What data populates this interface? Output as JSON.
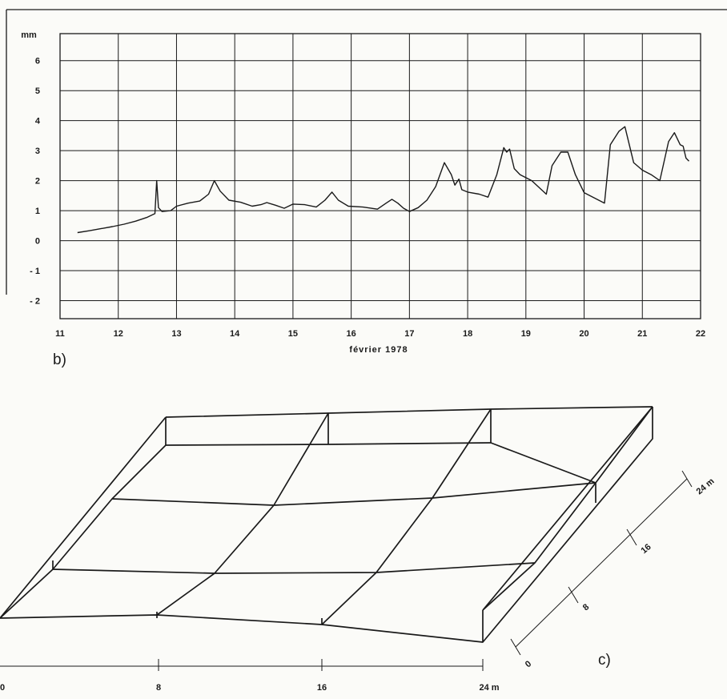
{
  "chart_data": [
    {
      "type": "line",
      "panel_label": "b)",
      "xlabel": "février 1978",
      "ylabel": "mm",
      "xlim": [
        11,
        22
      ],
      "ylim": [
        -2.6,
        6.9
      ],
      "x_ticks": [
        "11",
        "12",
        "13",
        "14",
        "15",
        "16",
        "17",
        "18",
        "19",
        "20",
        "21",
        "22"
      ],
      "y_ticks": [
        "6",
        "5",
        "4",
        "3",
        "2",
        "1",
        "0",
        "- 1",
        "- 2"
      ],
      "grid": true,
      "series": [
        {
          "points": [
            [
              11.3,
              0.27
            ],
            [
              11.5,
              0.33
            ],
            [
              11.7,
              0.4
            ],
            [
              11.9,
              0.47
            ],
            [
              12.1,
              0.55
            ],
            [
              12.3,
              0.65
            ],
            [
              12.5,
              0.78
            ],
            [
              12.63,
              0.9
            ],
            [
              12.66,
              2.0
            ],
            [
              12.69,
              1.1
            ],
            [
              12.75,
              0.97
            ],
            [
              12.9,
              1.0
            ],
            [
              13.0,
              1.15
            ],
            [
              13.2,
              1.25
            ],
            [
              13.4,
              1.32
            ],
            [
              13.55,
              1.55
            ],
            [
              13.65,
              2.0
            ],
            [
              13.75,
              1.65
            ],
            [
              13.9,
              1.35
            ],
            [
              14.1,
              1.28
            ],
            [
              14.3,
              1.15
            ],
            [
              14.45,
              1.2
            ],
            [
              14.55,
              1.27
            ],
            [
              14.7,
              1.18
            ],
            [
              14.85,
              1.08
            ],
            [
              15.0,
              1.22
            ],
            [
              15.2,
              1.2
            ],
            [
              15.4,
              1.12
            ],
            [
              15.55,
              1.35
            ],
            [
              15.67,
              1.62
            ],
            [
              15.78,
              1.35
            ],
            [
              15.95,
              1.15
            ],
            [
              16.2,
              1.12
            ],
            [
              16.45,
              1.05
            ],
            [
              16.6,
              1.25
            ],
            [
              16.7,
              1.38
            ],
            [
              16.8,
              1.25
            ],
            [
              16.9,
              1.08
            ],
            [
              17.0,
              0.97
            ],
            [
              17.15,
              1.1
            ],
            [
              17.3,
              1.35
            ],
            [
              17.45,
              1.8
            ],
            [
              17.6,
              2.6
            ],
            [
              17.72,
              2.2
            ],
            [
              17.78,
              1.85
            ],
            [
              17.85,
              2.05
            ],
            [
              17.9,
              1.7
            ],
            [
              18.0,
              1.62
            ],
            [
              18.2,
              1.55
            ],
            [
              18.35,
              1.45
            ],
            [
              18.5,
              2.2
            ],
            [
              18.62,
              3.1
            ],
            [
              18.67,
              2.95
            ],
            [
              18.72,
              3.05
            ],
            [
              18.8,
              2.4
            ],
            [
              18.9,
              2.2
            ],
            [
              19.1,
              2.0
            ],
            [
              19.35,
              1.55
            ],
            [
              19.45,
              2.5
            ],
            [
              19.6,
              2.95
            ],
            [
              19.72,
              2.95
            ],
            [
              19.85,
              2.2
            ],
            [
              20.0,
              1.6
            ],
            [
              20.2,
              1.4
            ],
            [
              20.35,
              1.25
            ],
            [
              20.45,
              3.2
            ],
            [
              20.6,
              3.65
            ],
            [
              20.7,
              3.8
            ],
            [
              20.85,
              2.6
            ],
            [
              21.0,
              2.35
            ],
            [
              21.15,
              2.2
            ],
            [
              21.3,
              2.0
            ],
            [
              21.45,
              3.3
            ],
            [
              21.55,
              3.6
            ],
            [
              21.65,
              3.2
            ],
            [
              21.7,
              3.15
            ],
            [
              21.75,
              2.75
            ],
            [
              21.8,
              2.65
            ]
          ]
        }
      ]
    },
    {
      "type": "surface-grid",
      "panel_label": "c)",
      "x_ticks": [
        "0",
        "8",
        "16",
        "24 m"
      ],
      "depth_ticks": [
        "0",
        "8",
        "16",
        "24 m"
      ]
    }
  ]
}
